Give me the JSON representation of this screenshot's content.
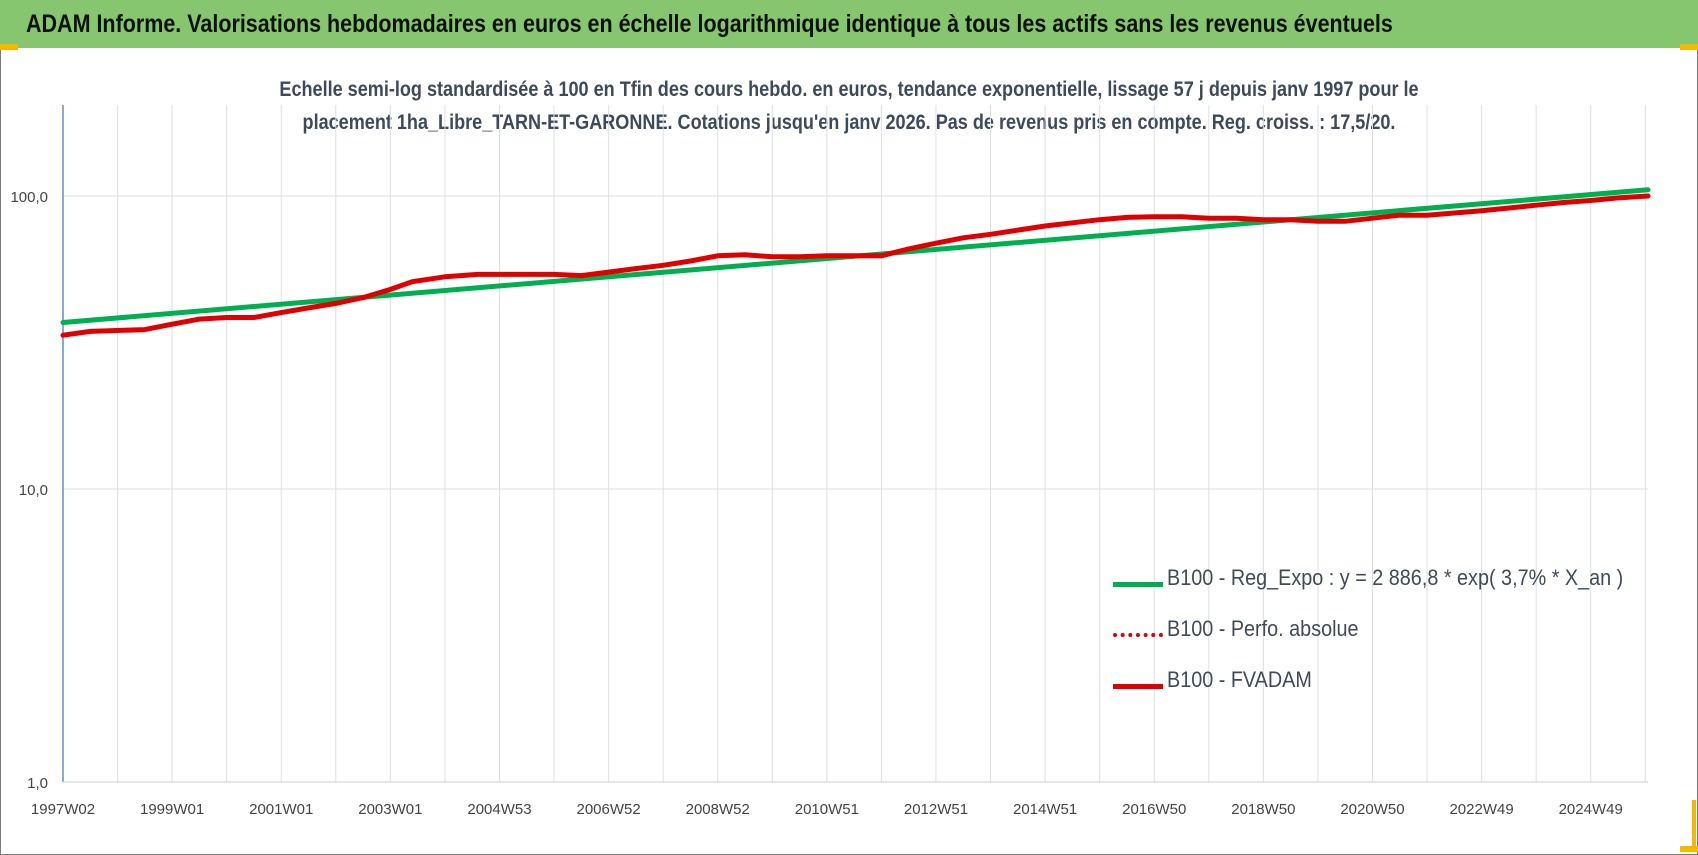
{
  "header": {
    "title": "ADAM Informe. Valorisations hebdomadaires en euros en échelle logarithmique identique à tous les actifs sans les revenus éventuels"
  },
  "chart_data": {
    "type": "line",
    "title_lines": [
      "Echelle semi-log standardisée à 100 en Tfin des cours hebdo. en euros, tendance exponentielle, lissage 57 j depuis janv 1997 pour le",
      "placement 1ha_Libre_TARN-ET-GARONNE. Cotations jusqu'en janv 2026.  Pas de revenus pris en compte. Reg. croiss. : 17,5/20."
    ],
    "yscale": "log",
    "ylim": [
      1,
      200
    ],
    "y_ticks": [
      {
        "value": 1,
        "label": "1,0"
      },
      {
        "value": 10,
        "label": "10,0"
      },
      {
        "value": 100,
        "label": "100,0"
      }
    ],
    "xlim": [
      1997.0,
      2026.05
    ],
    "x_ticks": [
      {
        "value": 1997.0,
        "label": "1997W02"
      },
      {
        "value": 1999.0,
        "label": "1999W01"
      },
      {
        "value": 2001.0,
        "label": "2001W01"
      },
      {
        "value": 2003.0,
        "label": "2003W01"
      },
      {
        "value": 2005.0,
        "label": "2004W53"
      },
      {
        "value": 2007.0,
        "label": "2006W52"
      },
      {
        "value": 2009.0,
        "label": "2008W52"
      },
      {
        "value": 2011.0,
        "label": "2010W51"
      },
      {
        "value": 2013.0,
        "label": "2012W51"
      },
      {
        "value": 2015.0,
        "label": "2014W51"
      },
      {
        "value": 2017.0,
        "label": "2016W50"
      },
      {
        "value": 2019.0,
        "label": "2018W50"
      },
      {
        "value": 2021.0,
        "label": "2020W50"
      },
      {
        "value": 2023.0,
        "label": "2022W49"
      },
      {
        "value": 2025.0,
        "label": "2024W49"
      }
    ],
    "grid": "vertical and horizontal",
    "legend_position": "bottom-right",
    "series": [
      {
        "name": "B100 - Reg_Expo : y = 2 886,8 * exp( 3,7% *  X_an )",
        "color": "#00b050",
        "style": "solid",
        "points": [
          [
            1997.0,
            37
          ],
          [
            2026.05,
            105
          ]
        ]
      },
      {
        "name": "B100 - Perfo. absolue",
        "color": "#e00000",
        "style": "dotted",
        "points": []
      },
      {
        "name": "B100 - FVADAM",
        "color": "#e00000",
        "style": "solid",
        "points": [
          [
            1997.0,
            33.5
          ],
          [
            1997.5,
            34.5
          ],
          [
            1998.5,
            35.0
          ],
          [
            1999.0,
            36.5
          ],
          [
            1999.5,
            38.0
          ],
          [
            2000.0,
            38.5
          ],
          [
            2000.5,
            38.5
          ],
          [
            2001.0,
            40.0
          ],
          [
            2001.5,
            41.5
          ],
          [
            2002.0,
            43.0
          ],
          [
            2002.5,
            45.0
          ],
          [
            2003.0,
            48.0
          ],
          [
            2003.4,
            51.0
          ],
          [
            2004.0,
            53.0
          ],
          [
            2004.6,
            54.0
          ],
          [
            2005.0,
            54.0
          ],
          [
            2006.0,
            54.0
          ],
          [
            2006.5,
            53.5
          ],
          [
            2007.0,
            55.0
          ],
          [
            2007.5,
            56.5
          ],
          [
            2008.0,
            58.0
          ],
          [
            2008.5,
            60.0
          ],
          [
            2009.0,
            62.5
          ],
          [
            2009.5,
            63.0
          ],
          [
            2010.0,
            62.0
          ],
          [
            2010.5,
            62.0
          ],
          [
            2011.0,
            62.5
          ],
          [
            2011.5,
            62.5
          ],
          [
            2012.0,
            62.5
          ],
          [
            2012.5,
            66.0
          ],
          [
            2013.0,
            69.0
          ],
          [
            2013.5,
            72.0
          ],
          [
            2014.0,
            74.0
          ],
          [
            2014.5,
            76.5
          ],
          [
            2015.0,
            79.0
          ],
          [
            2015.5,
            81.0
          ],
          [
            2016.0,
            83.0
          ],
          [
            2016.5,
            84.5
          ],
          [
            2017.0,
            85.0
          ],
          [
            2017.5,
            85.0
          ],
          [
            2018.0,
            84.0
          ],
          [
            2018.5,
            84.0
          ],
          [
            2019.0,
            83.0
          ],
          [
            2019.5,
            83.0
          ],
          [
            2020.0,
            82.0
          ],
          [
            2020.5,
            82.0
          ],
          [
            2021.0,
            84.0
          ],
          [
            2021.5,
            86.0
          ],
          [
            2022.0,
            86.0
          ],
          [
            2022.5,
            87.5
          ],
          [
            2023.0,
            89.0
          ],
          [
            2023.5,
            91.0
          ],
          [
            2024.0,
            93.0
          ],
          [
            2024.5,
            95.0
          ],
          [
            2025.0,
            96.5
          ],
          [
            2025.5,
            98.5
          ],
          [
            2026.05,
            100.0
          ]
        ]
      }
    ]
  }
}
